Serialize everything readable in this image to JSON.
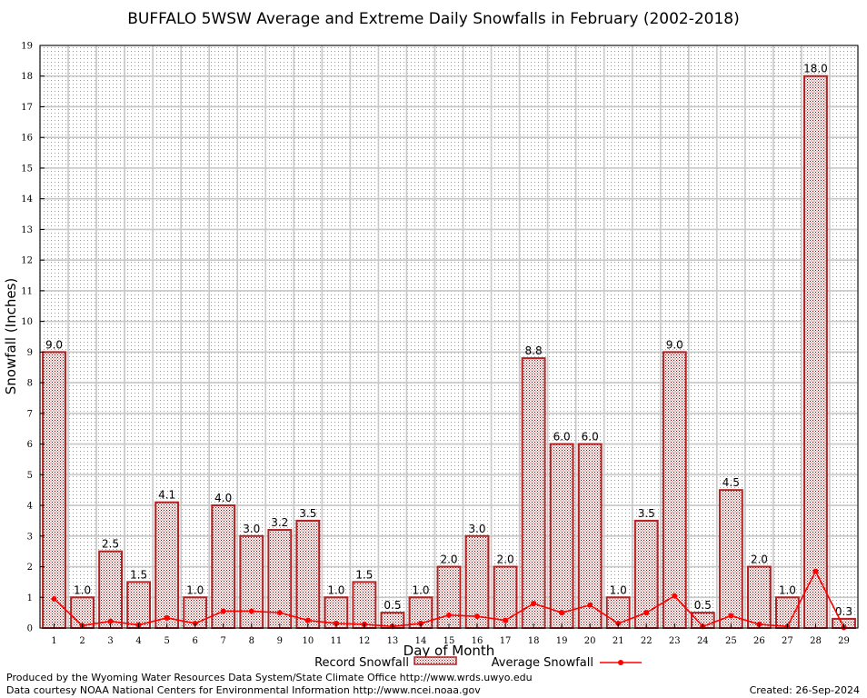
{
  "chart_data": {
    "type": "bar",
    "title": "BUFFALO 5WSW Average and Extreme Daily Snowfalls in February (2002-2018)",
    "xlabel": "Day of Month",
    "ylabel": "Snowfall (Inches)",
    "ylim": [
      0,
      19
    ],
    "yticks": [
      "0",
      "1",
      "2",
      "3",
      "4",
      "5",
      "6",
      "7",
      "8",
      "9",
      "10",
      "11",
      "12",
      "13",
      "14",
      "15",
      "16",
      "17",
      "18",
      "19"
    ],
    "categories": [
      "1",
      "2",
      "3",
      "4",
      "5",
      "6",
      "7",
      "8",
      "9",
      "10",
      "11",
      "12",
      "13",
      "14",
      "15",
      "16",
      "17",
      "18",
      "19",
      "20",
      "21",
      "22",
      "23",
      "24",
      "25",
      "26",
      "27",
      "28",
      "29"
    ],
    "grid": true,
    "legend_position": "bottom",
    "series": [
      {
        "name": "Record Snowfall",
        "kind": "bar",
        "color": "#b22222",
        "values": [
          9.0,
          1.0,
          2.5,
          1.5,
          4.1,
          1.0,
          4.0,
          3.0,
          3.2,
          3.5,
          1.0,
          1.5,
          0.5,
          1.0,
          2.0,
          3.0,
          2.0,
          8.8,
          6.0,
          6.0,
          1.0,
          3.5,
          9.0,
          0.5,
          4.5,
          2.0,
          1.0,
          18.0,
          0.3
        ],
        "labels": [
          "9.0",
          "1.0",
          "2.5",
          "1.5",
          "4.1",
          "1.0",
          "4.0",
          "3.0",
          "3.2",
          "3.5",
          "1.0",
          "1.5",
          "0.5",
          "1.0",
          "2.0",
          "3.0",
          "2.0",
          "8.8",
          "6.0",
          "6.0",
          "1.0",
          "3.5",
          "9.0",
          "0.5",
          "4.5",
          "2.0",
          "1.0",
          "18.0",
          "0.3"
        ]
      },
      {
        "name": "Average Snowfall",
        "kind": "line",
        "color": "#ff0000",
        "values": [
          0.95,
          0.08,
          0.22,
          0.1,
          0.33,
          0.15,
          0.55,
          0.55,
          0.5,
          0.25,
          0.15,
          0.12,
          0.05,
          0.15,
          0.42,
          0.38,
          0.25,
          0.8,
          0.5,
          0.75,
          0.15,
          0.5,
          1.05,
          0.05,
          0.4,
          0.12,
          0.05,
          1.85,
          0.02
        ]
      }
    ]
  },
  "footer": {
    "produced_by": "Produced by the Wyoming Water Resources Data System/State Climate Office http://www.wrds.uwyo.edu",
    "data_courtesy": "Data courtesy NOAA National Centers for Environmental Information http://www.ncei.noaa.gov",
    "created": "Created:  26-Sep-2024"
  }
}
